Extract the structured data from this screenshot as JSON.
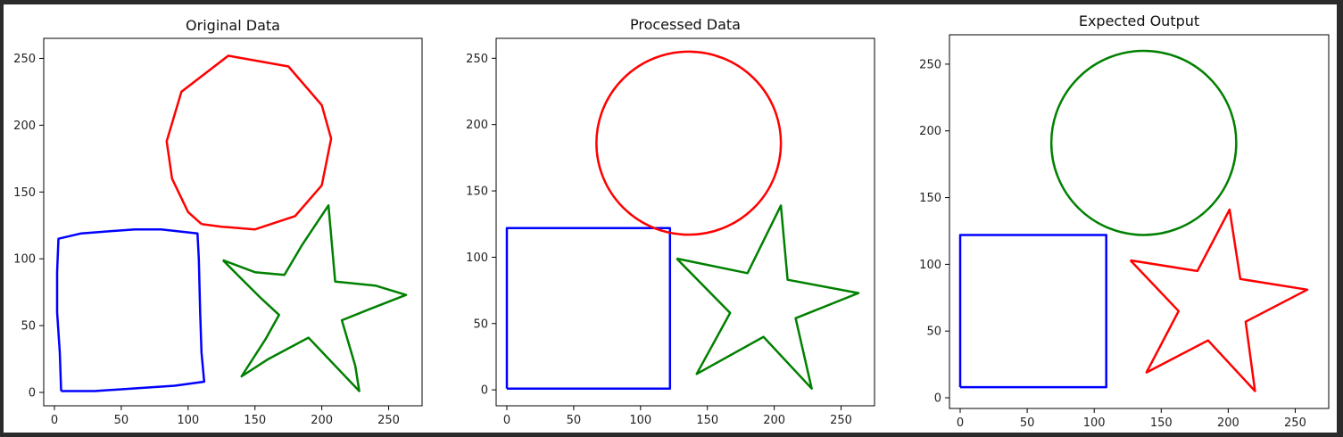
{
  "chart_data": [
    {
      "type": "line",
      "title": "Original Data",
      "xlabel": "",
      "ylabel": "",
      "xlim": [
        -8,
        275
      ],
      "ylim": [
        -10,
        265
      ],
      "xticks": [
        0,
        50,
        100,
        150,
        200,
        250
      ],
      "yticks": [
        0,
        50,
        100,
        150,
        200,
        250
      ],
      "grid": false,
      "series": [
        {
          "color": "#0000ff",
          "points": [
            [
              5,
              1
            ],
            [
              4,
              30
            ],
            [
              2,
              60
            ],
            [
              2,
              90
            ],
            [
              3,
              115
            ],
            [
              20,
              119
            ],
            [
              60,
              122
            ],
            [
              80,
              122
            ],
            [
              107,
              119
            ],
            [
              108,
              100
            ],
            [
              109,
              60
            ],
            [
              110,
              30
            ],
            [
              112,
              8
            ],
            [
              90,
              5
            ],
            [
              60,
              3
            ],
            [
              30,
              1
            ],
            [
              10,
              1
            ],
            [
              5,
              1
            ]
          ]
        },
        {
          "color": "#ff0000",
          "points": [
            [
              110,
              126
            ],
            [
              100,
              135
            ],
            [
              88,
              160
            ],
            [
              84,
              188
            ],
            [
              95,
              225
            ],
            [
              130,
              252
            ],
            [
              175,
              244
            ],
            [
              200,
              215
            ],
            [
              207,
              190
            ],
            [
              200,
              155
            ],
            [
              180,
              132
            ],
            [
              150,
              122
            ],
            [
              125,
              124
            ],
            [
              110,
              126
            ]
          ]
        },
        {
          "color": "#008000",
          "points": [
            [
              126,
              99
            ],
            [
              150,
              90
            ],
            [
              172,
              88
            ],
            [
              185,
              110
            ],
            [
              205,
              140
            ],
            [
              210,
              83
            ],
            [
              240,
              80
            ],
            [
              263,
              73
            ],
            [
              235,
              62
            ],
            [
              215,
              54
            ],
            [
              225,
              20
            ],
            [
              228,
              1
            ],
            [
              210,
              20
            ],
            [
              190,
              41
            ],
            [
              160,
              25
            ],
            [
              140,
              12
            ],
            [
              158,
              40
            ],
            [
              168,
              58
            ],
            [
              155,
              70
            ],
            [
              140,
              85
            ],
            [
              126,
              99
            ]
          ]
        }
      ]
    },
    {
      "type": "line",
      "title": "Processed Data",
      "xlabel": "",
      "ylabel": "",
      "xlim": [
        -8,
        275
      ],
      "ylim": [
        -12,
        265
      ],
      "xticks": [
        0,
        50,
        100,
        150,
        200,
        250
      ],
      "yticks": [
        0,
        50,
        100,
        150,
        200,
        250
      ],
      "grid": false,
      "series": [
        {
          "color": "#0000ff",
          "points": [
            [
              0,
              1
            ],
            [
              122,
              1
            ],
            [
              122,
              122
            ],
            [
              0,
              122
            ],
            [
              0,
              1
            ]
          ]
        },
        {
          "color": "#ff0000",
          "circle": {
            "cx": 136,
            "cy": 186,
            "r": 69
          }
        },
        {
          "color": "#008000",
          "points": [
            [
              127,
              99
            ],
            [
              180,
              88
            ],
            [
              205,
              139
            ],
            [
              210,
              83
            ],
            [
              263,
              73
            ],
            [
              216,
              54
            ],
            [
              228,
              1
            ],
            [
              192,
              40
            ],
            [
              142,
              12
            ],
            [
              167,
              58
            ],
            [
              127,
              99
            ]
          ]
        }
      ]
    },
    {
      "type": "line",
      "title": "Expected Output",
      "xlabel": "",
      "ylabel": "",
      "xlim": [
        -8,
        275
      ],
      "ylim": [
        -8,
        272
      ],
      "xticks": [
        0,
        50,
        100,
        150,
        200,
        250
      ],
      "yticks": [
        0,
        50,
        100,
        150,
        200,
        250
      ],
      "grid": false,
      "series": [
        {
          "color": "#0000ff",
          "points": [
            [
              0,
              8
            ],
            [
              109,
              8
            ],
            [
              109,
              122
            ],
            [
              0,
              122
            ],
            [
              0,
              8
            ]
          ]
        },
        {
          "color": "#008000",
          "circle": {
            "cx": 137,
            "cy": 191,
            "r": 69
          }
        },
        {
          "color": "#ff0000",
          "points": [
            [
              127,
              103
            ],
            [
              177,
              95
            ],
            [
              201,
              141
            ],
            [
              209,
              89
            ],
            [
              259,
              81
            ],
            [
              213,
              57
            ],
            [
              220,
              5
            ],
            [
              185,
              43
            ],
            [
              139,
              19
            ],
            [
              163,
              65
            ],
            [
              127,
              103
            ]
          ]
        }
      ]
    }
  ]
}
